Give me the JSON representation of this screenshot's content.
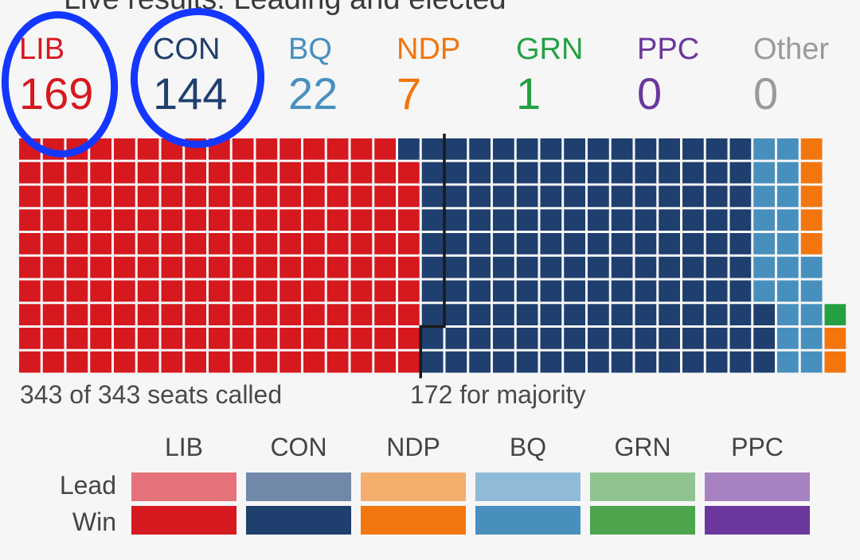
{
  "header": {
    "live_text": "Live results: Leading and elected"
  },
  "parties": [
    {
      "abbr": "LIB",
      "seats": "169",
      "color": "#d6181f"
    },
    {
      "abbr": "CON",
      "seats": "144",
      "color": "#1f3f6e"
    },
    {
      "abbr": "BQ",
      "seats": "22",
      "color": "#4790be"
    },
    {
      "abbr": "NDP",
      "seats": "7",
      "color": "#f2760d"
    },
    {
      "abbr": "GRN",
      "seats": "1",
      "color": "#24a043"
    },
    {
      "abbr": "PPC",
      "seats": "0",
      "color": "#6c379c"
    },
    {
      "abbr": "Other",
      "seats": "0",
      "color": "#9a9a9a"
    }
  ],
  "footer": {
    "seats_called": "343 of 343 seats called",
    "majority": "172 for majority"
  },
  "legend": {
    "row_labels": [
      "Lead",
      "Win"
    ],
    "parties": [
      {
        "abbr": "LIB",
        "lead_color": "#e5727a",
        "win_color": "#d6181f"
      },
      {
        "abbr": "CON",
        "lead_color": "#7188a8",
        "win_color": "#1f3f6e"
      },
      {
        "abbr": "NDP",
        "lead_color": "#f5ad6e",
        "win_color": "#f2760d"
      },
      {
        "abbr": "BQ",
        "lead_color": "#8fbbd8",
        "win_color": "#4790be"
      },
      {
        "abbr": "GRN",
        "lead_color": "#8fc491",
        "win_color": "#4ca54c"
      },
      {
        "abbr": "PPC",
        "lead_color": "#a683c0",
        "win_color": "#6c379c"
      }
    ]
  },
  "chart_data": {
    "type": "waffle",
    "total_seats": 343,
    "seats_called": 343,
    "majority_threshold": 172,
    "categories": [
      "LIB",
      "CON",
      "BQ",
      "NDP",
      "GRN",
      "PPC",
      "Other"
    ],
    "values": [
      169,
      144,
      22,
      7,
      1,
      0,
      0
    ],
    "colors": [
      "#d6181f",
      "#1f3f6e",
      "#4790be",
      "#f2760d",
      "#24a043",
      "#6c379c",
      "#9a9a9a"
    ],
    "status": "Win"
  }
}
